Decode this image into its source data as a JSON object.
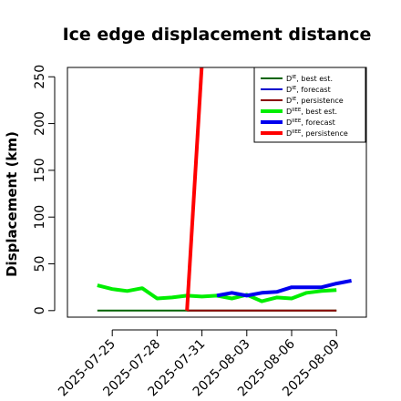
{
  "chart_data": {
    "type": "line",
    "title": "Ice edge displacement distance",
    "ylabel": "Displacement (km)",
    "xlabel": "",
    "ylim": [
      -7,
      260
    ],
    "yticks": [
      0,
      50,
      100,
      150,
      200,
      250
    ],
    "xlim": [
      "2025-07-22",
      "2025-08-11"
    ],
    "xticks": [
      {
        "label": "2025-07-25",
        "date": "2025-07-25",
        "color": "#000000"
      },
      {
        "label": "2025-07-28",
        "date": "2025-07-28",
        "color": "#000000"
      },
      {
        "label": "2025-07-31",
        "date": "2025-07-31",
        "color": "#228B22"
      },
      {
        "label": "2025-08-03",
        "date": "2025-08-03",
        "color": "#000000"
      },
      {
        "label": "2025-08-06",
        "date": "2025-08-06",
        "color": "#000000"
      },
      {
        "label": "2025-08-09",
        "date": "2025-08-09",
        "color": "#000000"
      }
    ],
    "grid": false,
    "legend_position": "top-right",
    "series": [
      {
        "name": "D^IE, best est.",
        "base": "D",
        "sup": "IE",
        "suffix": ", best est.",
        "color": "#006400",
        "width": 2,
        "points": [
          [
            "2025-07-24",
            0
          ],
          [
            "2025-08-09",
            0
          ]
        ]
      },
      {
        "name": "D^IE, forecast",
        "base": "D",
        "sup": "IE",
        "suffix": ", forecast",
        "color": "#0000CD",
        "width": 2,
        "points": []
      },
      {
        "name": "D^IE, persistence",
        "base": "D",
        "sup": "IE",
        "suffix": ", persistence",
        "color": "#8B0000",
        "width": 2,
        "points": [
          [
            "2025-07-30",
            0
          ],
          [
            "2025-08-09",
            0
          ]
        ]
      },
      {
        "name": "D^IIEE, best est.",
        "base": "D",
        "sup": "IIEE",
        "suffix": ", best est.",
        "color": "#00EE00",
        "width": 4,
        "points": [
          [
            "2025-07-24",
            27
          ],
          [
            "2025-07-25",
            23
          ],
          [
            "2025-07-26",
            21
          ],
          [
            "2025-07-27",
            24
          ],
          [
            "2025-07-28",
            13
          ],
          [
            "2025-07-29",
            14
          ],
          [
            "2025-07-30",
            16
          ],
          [
            "2025-07-31",
            15
          ],
          [
            "2025-08-01",
            16
          ],
          [
            "2025-08-02",
            13
          ],
          [
            "2025-08-03",
            17
          ],
          [
            "2025-08-04",
            10
          ],
          [
            "2025-08-05",
            14
          ],
          [
            "2025-08-06",
            13
          ],
          [
            "2025-08-07",
            19
          ],
          [
            "2025-08-08",
            21
          ],
          [
            "2025-08-09",
            22
          ]
        ]
      },
      {
        "name": "D^IIEE, forecast",
        "base": "D",
        "sup": "IIEE",
        "suffix": ", forecast",
        "color": "#0000EE",
        "width": 4,
        "points": [
          [
            "2025-08-01",
            16
          ],
          [
            "2025-08-02",
            19
          ],
          [
            "2025-08-03",
            16
          ],
          [
            "2025-08-04",
            19
          ],
          [
            "2025-08-05",
            20
          ],
          [
            "2025-08-06",
            25
          ],
          [
            "2025-08-07",
            25
          ],
          [
            "2025-08-08",
            25
          ],
          [
            "2025-08-09",
            29
          ],
          [
            "2025-08-10",
            32
          ]
        ]
      },
      {
        "name": "D^IIEE, persistence",
        "base": "D",
        "sup": "IIEE",
        "suffix": ", persistence",
        "color": "#FF0000",
        "width": 4,
        "points": [
          [
            "2025-07-30",
            0
          ],
          [
            "2025-07-31",
            265
          ]
        ]
      }
    ]
  }
}
